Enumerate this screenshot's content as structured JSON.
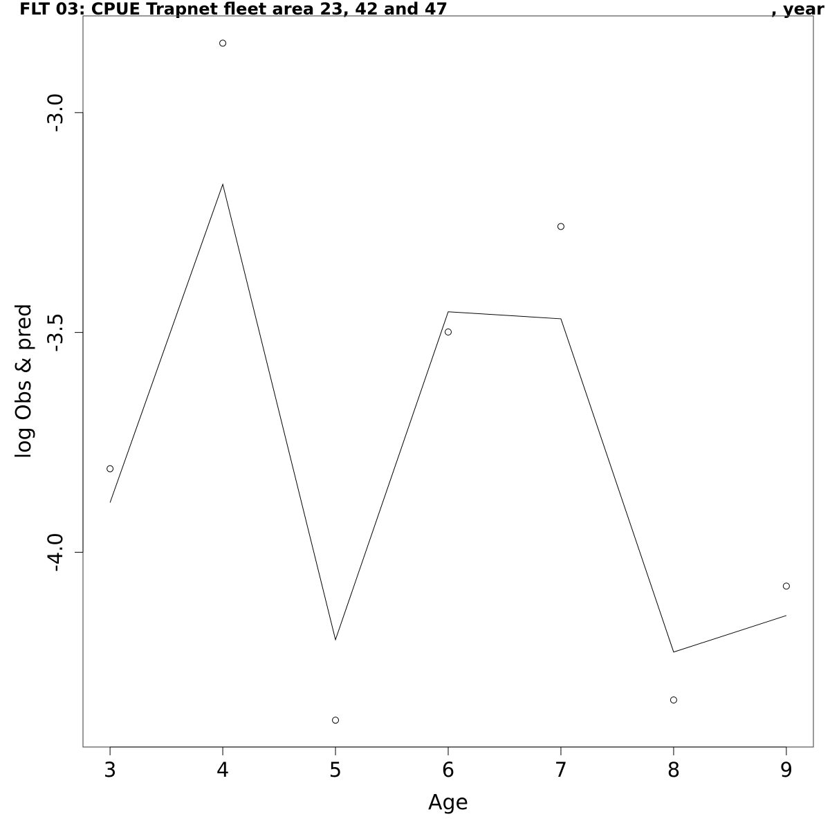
{
  "chart_data": {
    "type": "line",
    "title_left": "FLT 03: CPUE Trapnet fleet area 23, 42 and 47",
    "title_right": ", year",
    "xlabel": "Age",
    "ylabel": "log Obs & pred",
    "xlim": [
      2.76,
      9.24
    ],
    "ylim": [
      -4.443,
      -2.78
    ],
    "x_ticks": [
      3,
      4,
      5,
      6,
      7,
      8,
      9
    ],
    "x_tick_labels": [
      "3",
      "4",
      "5",
      "6",
      "7",
      "8",
      "9"
    ],
    "y_ticks": [
      -3.0,
      -3.5,
      -4.0
    ],
    "y_tick_labels": [
      "-3.0",
      "-3.5",
      "-4.0"
    ],
    "grid": false,
    "series": [
      {
        "kind": "points",
        "x": [
          3,
          4,
          5,
          6,
          7,
          8,
          9
        ],
        "y": [
          -3.81,
          -2.842,
          -4.382,
          -3.499,
          -3.259,
          -4.336,
          -4.077
        ]
      },
      {
        "kind": "line",
        "x": [
          3,
          4,
          5,
          6,
          7,
          8,
          9
        ],
        "y": [
          -3.887,
          -3.163,
          -4.199,
          -3.453,
          -3.469,
          -4.227,
          -4.144
        ]
      }
    ]
  }
}
